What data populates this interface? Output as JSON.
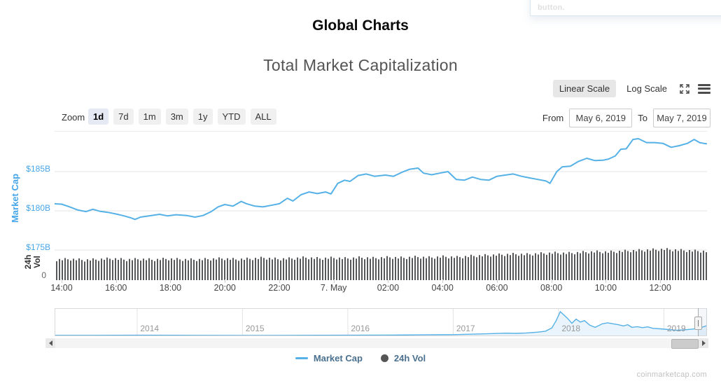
{
  "page": {
    "title": "Global Charts",
    "subtitle": "Total Market Capitalization",
    "watermark": "coinmarketcap.com",
    "tooltip_fragment": "button."
  },
  "controls": {
    "linear_scale": "Linear Scale",
    "log_scale": "Log Scale",
    "zoom_label": "Zoom",
    "zoom_buttons": [
      "1d",
      "7d",
      "1m",
      "3m",
      "1y",
      "YTD",
      "ALL"
    ],
    "zoom_selected": "1d",
    "from_label": "From",
    "from_value": "May 6, 2019",
    "to_label": "To",
    "to_value": "May 7, 2019"
  },
  "icons": {
    "fullscreen": "expand-arrows-icon",
    "menu": "hamburger-icon",
    "scroll_left": "left-arrow-icon",
    "scroll_right": "right-arrow-icon"
  },
  "legend": [
    {
      "label": "Market Cap",
      "marker": "line",
      "color": "#55b1e6"
    },
    {
      "label": "24h Vol",
      "marker": "circle",
      "color": "#555555"
    }
  ],
  "colors": {
    "line_blue": "#55b1e6",
    "axis_blue": "#46a6e9",
    "volume_gray": "#57585a",
    "grid": "#e6e6e6",
    "nav_fill": "#e9f4fc"
  },
  "chart_data": {
    "type": "line",
    "title": "Total Market Capitalization",
    "y_axis": {
      "title": "Market Cap",
      "ticks": [
        "$185B",
        "$180B",
        "$175B"
      ],
      "tick_values": [
        185,
        180,
        175
      ],
      "unit": "USD billions"
    },
    "volume_axis": {
      "title_lines": [
        "24h",
        "Vol"
      ],
      "ticks": [
        "0"
      ],
      "note": "only zero tick visible; bar heights are relative"
    },
    "x_ticks": [
      {
        "label": "14:00",
        "h": 0
      },
      {
        "label": "16:00",
        "h": 2
      },
      {
        "label": "18:00",
        "h": 4
      },
      {
        "label": "20:00",
        "h": 6
      },
      {
        "label": "22:00",
        "h": 8
      },
      {
        "label": "7. May",
        "h": 10
      },
      {
        "label": "02:00",
        "h": 12
      },
      {
        "label": "04:00",
        "h": 14
      },
      {
        "label": "06:00",
        "h": 16
      },
      {
        "label": "08:00",
        "h": 18
      },
      {
        "label": "10:00",
        "h": 20
      },
      {
        "label": "12:00",
        "h": 22
      }
    ],
    "series": [
      {
        "name": "Market Cap",
        "type": "line",
        "color": "#55b1e6",
        "unit": "USD billions",
        "points_hours_from_1400_vs_billions": [
          [
            -0.3,
            180.9
          ],
          [
            0,
            180.85
          ],
          [
            0.3,
            180.5
          ],
          [
            0.6,
            180.1
          ],
          [
            0.9,
            179.9
          ],
          [
            1.15,
            180.2
          ],
          [
            1.4,
            179.95
          ],
          [
            1.7,
            179.8
          ],
          [
            2.0,
            179.6
          ],
          [
            2.3,
            179.35
          ],
          [
            2.55,
            179.1
          ],
          [
            2.7,
            178.9
          ],
          [
            2.9,
            179.2
          ],
          [
            3.3,
            179.4
          ],
          [
            3.6,
            179.55
          ],
          [
            3.9,
            179.35
          ],
          [
            4.2,
            179.5
          ],
          [
            4.6,
            179.4
          ],
          [
            4.9,
            179.2
          ],
          [
            5.2,
            179.4
          ],
          [
            5.5,
            179.9
          ],
          [
            5.75,
            180.5
          ],
          [
            6.0,
            180.8
          ],
          [
            6.3,
            180.6
          ],
          [
            6.6,
            181.2
          ],
          [
            6.8,
            180.9
          ],
          [
            7.1,
            180.6
          ],
          [
            7.4,
            180.5
          ],
          [
            7.7,
            180.7
          ],
          [
            8.0,
            180.9
          ],
          [
            8.3,
            181.6
          ],
          [
            8.5,
            181.25
          ],
          [
            8.8,
            182.05
          ],
          [
            9.1,
            182.4
          ],
          [
            9.4,
            182.2
          ],
          [
            9.7,
            182.4
          ],
          [
            9.9,
            182.15
          ],
          [
            10.15,
            183.5
          ],
          [
            10.4,
            183.9
          ],
          [
            10.6,
            183.75
          ],
          [
            10.9,
            184.5
          ],
          [
            11.2,
            184.7
          ],
          [
            11.5,
            184.4
          ],
          [
            11.9,
            184.55
          ],
          [
            12.2,
            184.4
          ],
          [
            12.5,
            184.9
          ],
          [
            12.8,
            185.3
          ],
          [
            13.1,
            185.45
          ],
          [
            13.3,
            184.8
          ],
          [
            13.6,
            184.6
          ],
          [
            13.9,
            184.8
          ],
          [
            14.2,
            185.0
          ],
          [
            14.5,
            184.0
          ],
          [
            14.8,
            183.9
          ],
          [
            15.1,
            184.3
          ],
          [
            15.4,
            184.0
          ],
          [
            15.7,
            183.9
          ],
          [
            16.0,
            184.4
          ],
          [
            16.3,
            184.55
          ],
          [
            16.6,
            184.7
          ],
          [
            16.9,
            184.4
          ],
          [
            17.2,
            184.2
          ],
          [
            17.5,
            184.0
          ],
          [
            17.8,
            183.8
          ],
          [
            17.95,
            183.5
          ],
          [
            18.2,
            185.0
          ],
          [
            18.4,
            185.6
          ],
          [
            18.7,
            185.7
          ],
          [
            19.0,
            186.3
          ],
          [
            19.3,
            186.7
          ],
          [
            19.6,
            186.4
          ],
          [
            19.9,
            186.45
          ],
          [
            20.1,
            186.6
          ],
          [
            20.35,
            187.0
          ],
          [
            20.55,
            187.85
          ],
          [
            20.75,
            187.9
          ],
          [
            21.0,
            189.1
          ],
          [
            21.2,
            189.2
          ],
          [
            21.5,
            188.7
          ],
          [
            21.8,
            188.7
          ],
          [
            22.1,
            188.6
          ],
          [
            22.4,
            188.1
          ],
          [
            22.7,
            188.3
          ],
          [
            23.0,
            188.6
          ],
          [
            23.25,
            189.1
          ],
          [
            23.45,
            188.7
          ],
          [
            23.6,
            188.6
          ],
          [
            23.7,
            188.55
          ]
        ]
      },
      {
        "name": "24h Vol",
        "type": "column",
        "color": "#57585a",
        "profile": [
          0.66,
          0.68,
          0.65,
          0.67,
          0.7,
          0.66,
          0.68,
          0.66,
          0.69,
          0.67,
          0.66,
          0.68,
          0.7,
          0.67,
          0.69,
          0.72,
          0.68,
          0.7,
          0.73,
          0.7,
          0.72,
          0.7,
          0.73,
          0.71,
          0.74,
          0.72,
          0.75,
          0.73,
          0.76,
          0.74,
          0.78,
          0.8,
          0.82,
          0.84,
          0.83,
          0.86,
          0.88,
          0.87,
          0.9,
          0.92,
          0.91,
          0.94,
          0.96,
          0.98,
          1.0,
          0.97,
          0.95,
          0.93
        ]
      }
    ],
    "navigator": {
      "year_ticks": [
        2014,
        2015,
        2016,
        2017,
        2018,
        2019
      ],
      "points_year_vs_relative": [
        [
          2013.22,
          0.02
        ],
        [
          2013.6,
          0.02
        ],
        [
          2014.0,
          0.025
        ],
        [
          2014.5,
          0.02
        ],
        [
          2015.0,
          0.015
        ],
        [
          2015.5,
          0.02
        ],
        [
          2016.0,
          0.025
        ],
        [
          2016.4,
          0.03
        ],
        [
          2016.7,
          0.04
        ],
        [
          2017.0,
          0.05
        ],
        [
          2017.2,
          0.07
        ],
        [
          2017.35,
          0.09
        ],
        [
          2017.5,
          0.11
        ],
        [
          2017.6,
          0.1
        ],
        [
          2017.7,
          0.12
        ],
        [
          2017.8,
          0.15
        ],
        [
          2017.88,
          0.19
        ],
        [
          2017.94,
          0.33
        ],
        [
          2017.98,
          0.62
        ],
        [
          2018.02,
          1.0
        ],
        [
          2018.05,
          0.88
        ],
        [
          2018.09,
          0.72
        ],
        [
          2018.13,
          0.52
        ],
        [
          2018.17,
          0.69
        ],
        [
          2018.21,
          0.57
        ],
        [
          2018.25,
          0.63
        ],
        [
          2018.3,
          0.44
        ],
        [
          2018.35,
          0.35
        ],
        [
          2018.42,
          0.5
        ],
        [
          2018.47,
          0.54
        ],
        [
          2018.52,
          0.5
        ],
        [
          2018.57,
          0.46
        ],
        [
          2018.62,
          0.41
        ],
        [
          2018.66,
          0.46
        ],
        [
          2018.7,
          0.35
        ],
        [
          2018.75,
          0.38
        ],
        [
          2018.8,
          0.34
        ],
        [
          2018.85,
          0.37
        ],
        [
          2018.9,
          0.31
        ],
        [
          2018.97,
          0.29
        ],
        [
          2019.05,
          0.26
        ],
        [
          2019.12,
          0.23
        ],
        [
          2019.2,
          0.25
        ],
        [
          2019.28,
          0.28
        ],
        [
          2019.35,
          0.33
        ],
        [
          2019.41,
          0.42
        ]
      ]
    }
  }
}
